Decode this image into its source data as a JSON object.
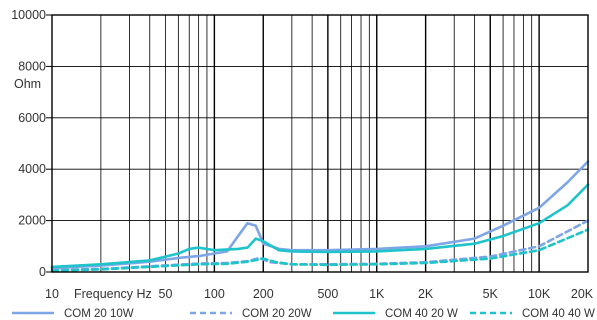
{
  "chart_data": {
    "type": "line",
    "x_scale": "log",
    "xlim": [
      10,
      20000
    ],
    "ylim": [
      0,
      10000
    ],
    "y_ticks": [
      "10000",
      "8000",
      "6000",
      "4000",
      "2000",
      "0"
    ],
    "ylabel": "Ohm",
    "xlabel": "Frequency Hz",
    "x_ticks": [
      "10",
      "50",
      "100",
      "200",
      "500",
      "1K",
      "2K",
      "5K",
      "10K",
      "20K"
    ],
    "grid": true,
    "legend_position": "bottom",
    "series": [
      {
        "name": "COM 20 10W",
        "color": "#7ea6e6",
        "dash": "solid",
        "points": [
          [
            10,
            150
          ],
          [
            20,
            250
          ],
          [
            40,
            400
          ],
          [
            60,
            550
          ],
          [
            80,
            620
          ],
          [
            100,
            720
          ],
          [
            120,
            800
          ],
          [
            140,
            1400
          ],
          [
            160,
            1900
          ],
          [
            180,
            1800
          ],
          [
            200,
            1100
          ],
          [
            250,
            900
          ],
          [
            300,
            850
          ],
          [
            500,
            850
          ],
          [
            1000,
            900
          ],
          [
            2000,
            1000
          ],
          [
            4000,
            1300
          ],
          [
            6000,
            1800
          ],
          [
            10000,
            2500
          ],
          [
            15000,
            3500
          ],
          [
            20000,
            4300
          ]
        ]
      },
      {
        "name": "COM 20 20W",
        "color": "#7ea6e6",
        "dash": "dashed",
        "points": [
          [
            10,
            80
          ],
          [
            20,
            120
          ],
          [
            40,
            220
          ],
          [
            80,
            330
          ],
          [
            120,
            350
          ],
          [
            160,
            420
          ],
          [
            190,
            550
          ],
          [
            220,
            380
          ],
          [
            300,
            300
          ],
          [
            500,
            300
          ],
          [
            1000,
            320
          ],
          [
            2000,
            380
          ],
          [
            5000,
            600
          ],
          [
            10000,
            1000
          ],
          [
            20000,
            2000
          ]
        ]
      },
      {
        "name": "COM 40 20 W",
        "color": "#1fc4cb",
        "dash": "solid",
        "points": [
          [
            10,
            200
          ],
          [
            20,
            300
          ],
          [
            40,
            450
          ],
          [
            60,
            720
          ],
          [
            70,
            900
          ],
          [
            80,
            950
          ],
          [
            100,
            850
          ],
          [
            140,
            900
          ],
          [
            160,
            950
          ],
          [
            180,
            1300
          ],
          [
            200,
            1200
          ],
          [
            250,
            850
          ],
          [
            300,
            800
          ],
          [
            500,
            780
          ],
          [
            1000,
            800
          ],
          [
            2000,
            900
          ],
          [
            4000,
            1100
          ],
          [
            6000,
            1400
          ],
          [
            10000,
            1900
          ],
          [
            15000,
            2600
          ],
          [
            20000,
            3400
          ]
        ]
      },
      {
        "name": "COM 40 40 W",
        "color": "#1fc4cb",
        "dash": "dashed",
        "points": [
          [
            10,
            50
          ],
          [
            20,
            100
          ],
          [
            40,
            200
          ],
          [
            80,
            300
          ],
          [
            120,
            320
          ],
          [
            160,
            400
          ],
          [
            200,
            520
          ],
          [
            240,
            380
          ],
          [
            300,
            300
          ],
          [
            500,
            280
          ],
          [
            1000,
            300
          ],
          [
            2000,
            350
          ],
          [
            5000,
            520
          ],
          [
            10000,
            850
          ],
          [
            20000,
            1650
          ]
        ]
      }
    ]
  }
}
